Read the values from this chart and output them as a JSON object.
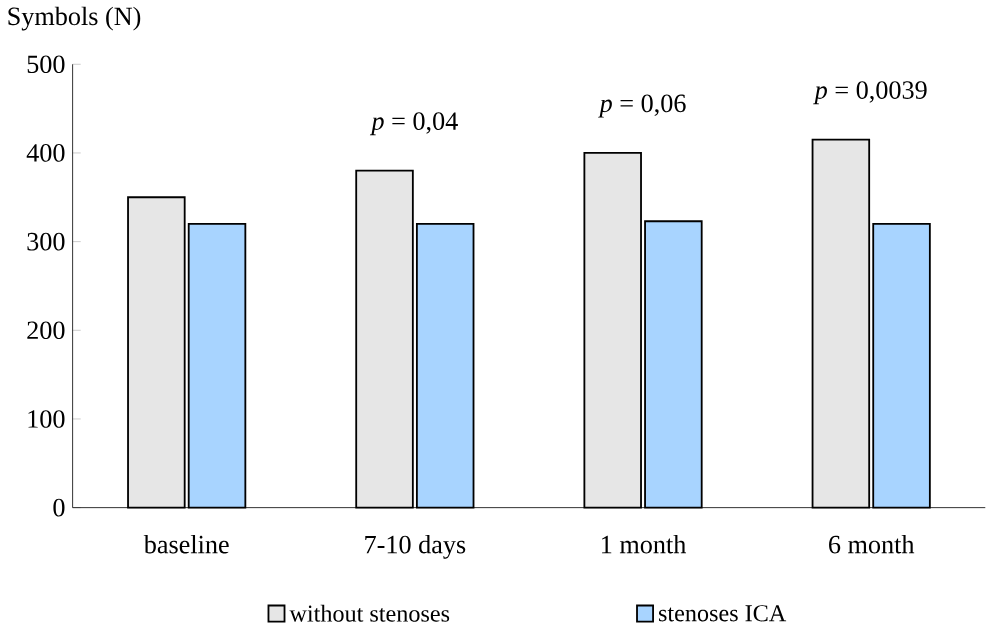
{
  "chart_data": {
    "type": "bar",
    "ylabel": "Symbols (N)",
    "categories": [
      "baseline",
      "7-10 days",
      "1 month",
      "6 month"
    ],
    "series": [
      {
        "name": "without stenoses",
        "color": "#e6e6e6",
        "values": [
          350,
          380,
          400,
          415
        ]
      },
      {
        "name": "stenoses ICA",
        "color": "#a8d4ff",
        "values": [
          320,
          320,
          323,
          320
        ]
      }
    ],
    "ylim": [
      0,
      500
    ],
    "yticks": [
      0,
      100,
      200,
      300,
      400,
      500
    ],
    "grid": false,
    "legend": "bottom",
    "annotations": [
      "*p* = 0,04",
      "*p* = 0,06",
      "*p* = 0,0039"
    ]
  }
}
